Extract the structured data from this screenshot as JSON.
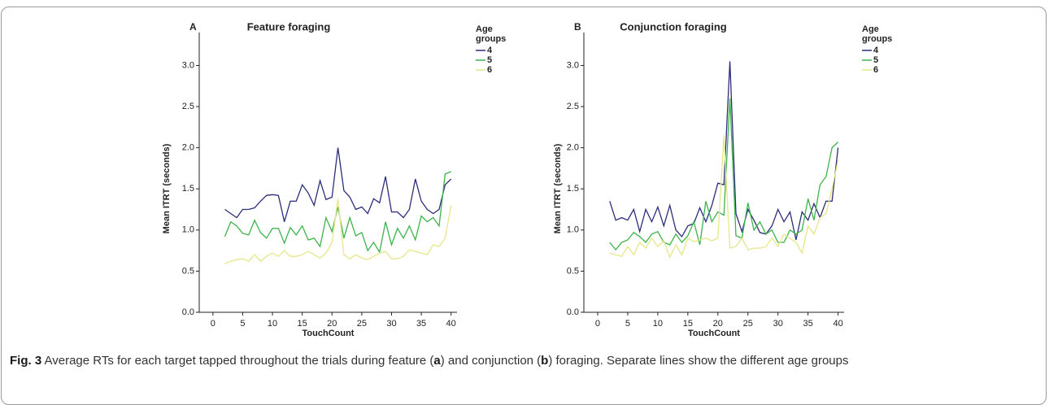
{
  "chart_data": [
    {
      "type": "line",
      "panel": "A",
      "title": "Feature foraging",
      "x_label": "TouchCount",
      "y_label": "Mean ITRT (seconds)",
      "legend_title": "Age groups",
      "x": [
        2,
        3,
        4,
        5,
        6,
        7,
        8,
        9,
        10,
        11,
        12,
        13,
        14,
        15,
        16,
        17,
        18,
        19,
        20,
        21,
        22,
        23,
        24,
        25,
        26,
        27,
        28,
        29,
        30,
        31,
        32,
        33,
        34,
        35,
        36,
        37,
        38,
        39,
        40
      ],
      "series": [
        {
          "name": "4",
          "color": "#2b2d7a",
          "values": [
            1.25,
            1.2,
            1.15,
            1.25,
            1.25,
            1.27,
            1.35,
            1.42,
            1.43,
            1.42,
            1.1,
            1.35,
            1.35,
            1.55,
            1.45,
            1.3,
            1.6,
            1.37,
            1.4,
            2.0,
            1.48,
            1.4,
            1.25,
            1.28,
            1.2,
            1.38,
            1.33,
            1.65,
            1.22,
            1.22,
            1.15,
            1.25,
            1.62,
            1.35,
            1.25,
            1.2,
            1.25,
            1.55,
            1.62
          ]
        },
        {
          "name": "5",
          "color": "#3cb44a",
          "values": [
            0.92,
            1.1,
            1.05,
            0.96,
            0.94,
            1.12,
            0.97,
            0.9,
            1.02,
            1.02,
            0.84,
            1.03,
            0.94,
            1.05,
            0.88,
            0.9,
            0.8,
            1.15,
            0.98,
            1.28,
            0.9,
            1.15,
            0.93,
            0.97,
            0.75,
            0.85,
            0.73,
            1.1,
            0.82,
            1.02,
            0.9,
            1.05,
            0.88,
            1.17,
            1.1,
            1.15,
            1.05,
            1.68,
            1.71
          ]
        },
        {
          "name": "6",
          "color": "#e6e68a",
          "values": [
            0.59,
            0.62,
            0.64,
            0.65,
            0.62,
            0.7,
            0.62,
            0.68,
            0.72,
            0.68,
            0.75,
            0.68,
            0.68,
            0.7,
            0.74,
            0.7,
            0.66,
            0.72,
            0.85,
            1.38,
            0.7,
            0.65,
            0.7,
            0.66,
            0.64,
            0.68,
            0.72,
            0.74,
            0.65,
            0.65,
            0.68,
            0.76,
            0.74,
            0.72,
            0.7,
            0.82,
            0.8,
            0.9,
            1.3
          ]
        }
      ],
      "xlim": [
        -2.3,
        41
      ],
      "xticks": [
        0,
        5,
        10,
        15,
        20,
        25,
        30,
        35,
        40
      ],
      "ylim": [
        0,
        3.4
      ],
      "yticks": [
        {
          "value": 0,
          "label": "0.0"
        },
        {
          "value": 0.5,
          "label": "0.5"
        },
        {
          "value": 1,
          "label": "1.0"
        },
        {
          "value": 1.5,
          "label": "1.5"
        },
        {
          "value": 2,
          "label": "2.0"
        },
        {
          "value": 2.5,
          "label": "2.5"
        },
        {
          "value": 3,
          "label": "3.0"
        }
      ],
      "grid": false,
      "legend": "upper right"
    },
    {
      "type": "line",
      "panel": "B",
      "title": "Conjunction foraging",
      "x_label": "TouchCount",
      "y_label": "Mean ITRT (seconds)",
      "legend_title": "Age groups",
      "x": [
        2,
        3,
        4,
        5,
        6,
        7,
        8,
        9,
        10,
        11,
        12,
        13,
        14,
        15,
        16,
        17,
        18,
        19,
        20,
        21,
        22,
        23,
        24,
        25,
        26,
        27,
        28,
        29,
        30,
        31,
        32,
        33,
        34,
        35,
        36,
        37,
        38,
        39,
        40
      ],
      "series": [
        {
          "name": "4",
          "color": "#2b2d7a",
          "values": [
            1.35,
            1.12,
            1.15,
            1.12,
            1.25,
            0.98,
            1.25,
            1.1,
            1.28,
            1.05,
            1.3,
            1.0,
            0.92,
            1.05,
            1.08,
            1.27,
            1.1,
            1.3,
            1.57,
            1.55,
            3.05,
            1.2,
            0.98,
            1.25,
            1.12,
            0.97,
            0.95,
            1.05,
            1.25,
            1.1,
            1.22,
            0.88,
            1.22,
            1.12,
            1.32,
            1.15,
            1.35,
            1.35,
            2.0
          ]
        },
        {
          "name": "5",
          "color": "#3cb44a",
          "values": [
            0.85,
            0.76,
            0.85,
            0.88,
            0.97,
            0.92,
            0.85,
            0.95,
            0.98,
            0.85,
            0.82,
            0.95,
            0.85,
            0.93,
            1.1,
            0.82,
            1.35,
            1.1,
            1.22,
            1.18,
            2.6,
            0.93,
            0.9,
            1.33,
            1.0,
            1.1,
            0.95,
            1.0,
            0.85,
            0.85,
            1.0,
            0.95,
            1.0,
            1.38,
            1.12,
            1.55,
            1.65,
            2.0,
            2.07
          ]
        },
        {
          "name": "6",
          "color": "#e6e68a",
          "values": [
            0.72,
            0.7,
            0.68,
            0.8,
            0.7,
            0.85,
            0.78,
            0.9,
            0.8,
            0.87,
            0.67,
            0.82,
            0.7,
            0.9,
            0.86,
            0.88,
            0.9,
            0.87,
            0.9,
            2.15,
            0.78,
            0.8,
            0.9,
            0.76,
            0.78,
            0.78,
            0.8,
            0.9,
            0.8,
            0.95,
            0.9,
            0.85,
            0.72,
            1.05,
            0.95,
            1.15,
            1.2,
            1.5,
            1.85
          ]
        }
      ],
      "xlim": [
        -2.3,
        41
      ],
      "xticks": [
        0,
        5,
        10,
        15,
        20,
        25,
        30,
        35,
        40
      ],
      "ylim": [
        0,
        3.4
      ],
      "yticks": [
        {
          "value": 0,
          "label": "0.0"
        },
        {
          "value": 0.5,
          "label": "0.5"
        },
        {
          "value": 1,
          "label": "1.0"
        },
        {
          "value": 1.5,
          "label": "1.5"
        },
        {
          "value": 2,
          "label": "2.0"
        },
        {
          "value": 2.5,
          "label": "2.5"
        },
        {
          "value": 3,
          "label": "3.0"
        }
      ],
      "grid": false,
      "legend": "upper right"
    }
  ],
  "caption": {
    "label": "Fig. 3",
    "parts": [
      " Average RTs for each target tapped throughout the trials during feature (",
      "a",
      ") and conjunction (",
      "b",
      ") foraging. Separate lines show the different age groups"
    ]
  }
}
